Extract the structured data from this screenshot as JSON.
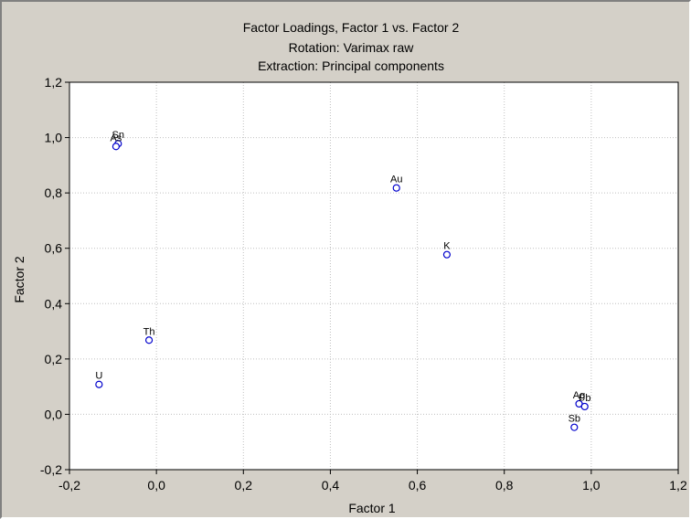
{
  "chart_data": {
    "type": "scatter",
    "title": "Factor Loadings, Factor 1 vs. Factor 2",
    "subtitle_lines": [
      "Rotation: Varimax raw",
      "Extraction: Principal components"
    ],
    "xlabel": "Factor 1",
    "ylabel": "Factor 2",
    "xlim": [
      -0.2,
      1.2
    ],
    "ylim": [
      -0.2,
      1.2
    ],
    "xticks": [
      -0.2,
      0.0,
      0.2,
      0.4,
      0.6,
      0.8,
      1.0,
      1.2
    ],
    "yticks": [
      -0.2,
      0.0,
      0.2,
      0.4,
      0.6,
      0.8,
      1.0,
      1.2
    ],
    "xtick_labels": [
      "-0,2",
      "0,0",
      "0,2",
      "0,4",
      "0,6",
      "0,8",
      "1,0",
      "1,2"
    ],
    "ytick_labels": [
      "-0,2",
      "0,0",
      "0,2",
      "0,4",
      "0,6",
      "0,8",
      "1,0",
      "1,2"
    ],
    "grid": true,
    "marker_color": "#0000cc",
    "points": [
      {
        "label": "Sn",
        "x": -0.088,
        "y": 0.978
      },
      {
        "label": "As",
        "x": -0.093,
        "y": 0.968
      },
      {
        "label": "Au",
        "x": 0.552,
        "y": 0.818
      },
      {
        "label": "K",
        "x": 0.668,
        "y": 0.577
      },
      {
        "label": "Th",
        "x": -0.017,
        "y": 0.268
      },
      {
        "label": "U",
        "x": -0.132,
        "y": 0.108
      },
      {
        "label": "Ag",
        "x": 0.972,
        "y": 0.038
      },
      {
        "label": "Pb",
        "x": 0.985,
        "y": 0.028
      },
      {
        "label": "Sb",
        "x": 0.961,
        "y": -0.047
      }
    ]
  }
}
